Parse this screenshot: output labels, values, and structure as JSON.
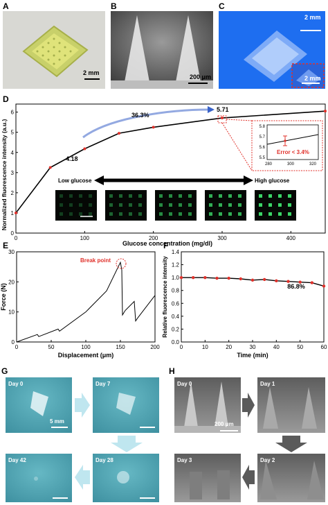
{
  "panels": {
    "A": {
      "label": "A",
      "scale": "2 mm"
    },
    "B": {
      "label": "B",
      "scale": "200 μm"
    },
    "C": {
      "label": "C",
      "scale_top": "2 mm",
      "scale_inset": "2 mm"
    },
    "D": {
      "label": "D",
      "ann_left": "4.18",
      "ann_right": "5.71",
      "ann_pct": "36.3%",
      "low": "Low glucose",
      "high": "High glucose",
      "inset": {
        "error": "Error < 3.4%",
        "yticks": [
          "5.5",
          "5.6",
          "5.7",
          "5.8"
        ],
        "xticks": [
          "280",
          "300",
          "320"
        ]
      }
    },
    "E": {
      "label": "E",
      "annotation": "Break point"
    },
    "F": {
      "label": "F",
      "annotation": "86.8%"
    },
    "G": {
      "label": "G",
      "days": [
        "Day 0",
        "Day 7",
        "Day 28",
        "Day 42"
      ],
      "scale": "5 mm"
    },
    "H": {
      "label": "H",
      "days": [
        "Day 0",
        "Day 1",
        "Day 2",
        "Day 3"
      ],
      "scale": "200 μm"
    }
  },
  "colors": {
    "accent_red": "#e0302a",
    "arrow_blue": "#3a63c9",
    "teal_bg": "#4fa6b4",
    "green_dot": "#3ddc6a"
  },
  "chart_data": [
    {
      "type": "line",
      "panel": "D",
      "xlabel": "Glucose concentration (mg/dl)",
      "ylabel": "Normalized fluorescence intensity (a.u.)",
      "xlim": [
        0,
        450
      ],
      "ylim": [
        0,
        6.4
      ],
      "xticks": [
        0,
        100,
        200,
        300,
        400
      ],
      "yticks": [
        0,
        1,
        2,
        3,
        4,
        5,
        6
      ],
      "x": [
        0,
        50,
        100,
        150,
        200,
        300,
        450
      ],
      "y": [
        1.0,
        3.25,
        4.18,
        4.95,
        5.25,
        5.71,
        6.05
      ]
    },
    {
      "type": "line",
      "panel": "E",
      "xlabel": "Displacement (μm)",
      "ylabel": "Force (N)",
      "xlim": [
        0,
        200
      ],
      "ylim": [
        0,
        30
      ],
      "xticks": [
        0,
        50,
        100,
        150,
        200
      ],
      "yticks": [
        0,
        10,
        20,
        30
      ],
      "x": [
        0,
        30,
        32,
        60,
        62,
        100,
        130,
        150,
        152,
        153,
        157,
        170,
        172,
        175,
        195,
        200
      ],
      "y": [
        0,
        2.5,
        1.8,
        4.3,
        3.6,
        10,
        17,
        26.5,
        24,
        9,
        10.5,
        13.5,
        7,
        8,
        14,
        15.5
      ]
    },
    {
      "type": "line",
      "panel": "F",
      "xlabel": "Time (min)",
      "ylabel": "Relative fluorescence intensity",
      "xlim": [
        0,
        60
      ],
      "ylim": [
        0,
        1.4
      ],
      "xticks": [
        0,
        10,
        20,
        30,
        40,
        50,
        60
      ],
      "yticks": [
        0.0,
        0.2,
        0.4,
        0.6,
        0.8,
        1.0,
        1.2,
        1.4
      ],
      "x": [
        0,
        5,
        10,
        15,
        20,
        25,
        30,
        35,
        40,
        45,
        50,
        55,
        60
      ],
      "y": [
        1.0,
        1.0,
        1.0,
        0.99,
        0.99,
        0.98,
        0.96,
        0.97,
        0.95,
        0.94,
        0.93,
        0.92,
        0.868
      ]
    }
  ]
}
